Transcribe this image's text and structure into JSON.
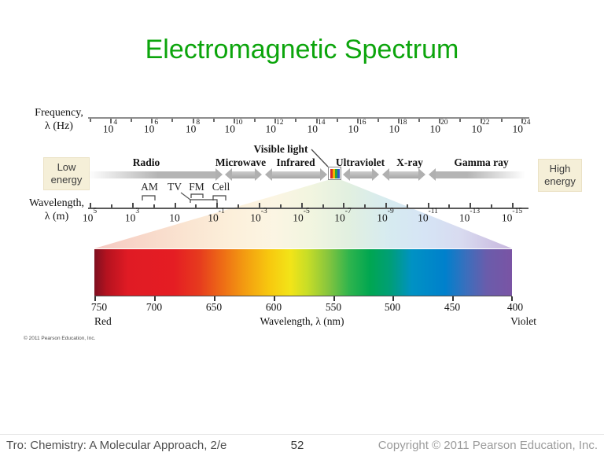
{
  "title": "Electromagnetic Spectrum",
  "colors": {
    "title_green": "#0ca50c",
    "band_gray": "#b0b0b0",
    "energy_box_bg": "#f5efd8"
  },
  "freq_axis": {
    "label_line1": "Frequency,",
    "label_line2": "λ (Hz)",
    "tick_base": "10",
    "tick_exponents": [
      "4",
      "6",
      "8",
      "10",
      "12",
      "14",
      "16",
      "18",
      "20",
      "22",
      "24"
    ]
  },
  "bands": {
    "radio": "Radio",
    "microwave": "Microwave",
    "infrared": "Infrared",
    "visible": "Visible light",
    "ultraviolet": "Ultraviolet",
    "xray": "X-ray",
    "gamma": "Gamma ray"
  },
  "energy_labels": {
    "low_line1": "Low",
    "low_line2": "energy",
    "high_line1": "High",
    "high_line2": "energy"
  },
  "radio_subbands": [
    "AM",
    "TV",
    "FM",
    "Cell"
  ],
  "wave_axis": {
    "label_line1": "Wavelength,",
    "label_line2": "λ (m)",
    "tick_base": "10",
    "tick_exponents": [
      "5",
      "3",
      "",
      "-1",
      "-3",
      "-5",
      "-7",
      "-9",
      "-11",
      "-13",
      "-15"
    ]
  },
  "visible_bar": {
    "tick_labels": [
      "750",
      "700",
      "650",
      "600",
      "550",
      "500",
      "450",
      "400"
    ],
    "left_end_label": "Red",
    "right_end_label": "Violet",
    "axis_label": "Wavelength, λ (nm)"
  },
  "credit": "© 2011 Pearson Education, Inc.",
  "footer": {
    "left": "Tro: Chemistry: A Molecular Approach, 2/e",
    "page_number": "52",
    "right": "Copyright © 2011 Pearson Education, Inc."
  }
}
